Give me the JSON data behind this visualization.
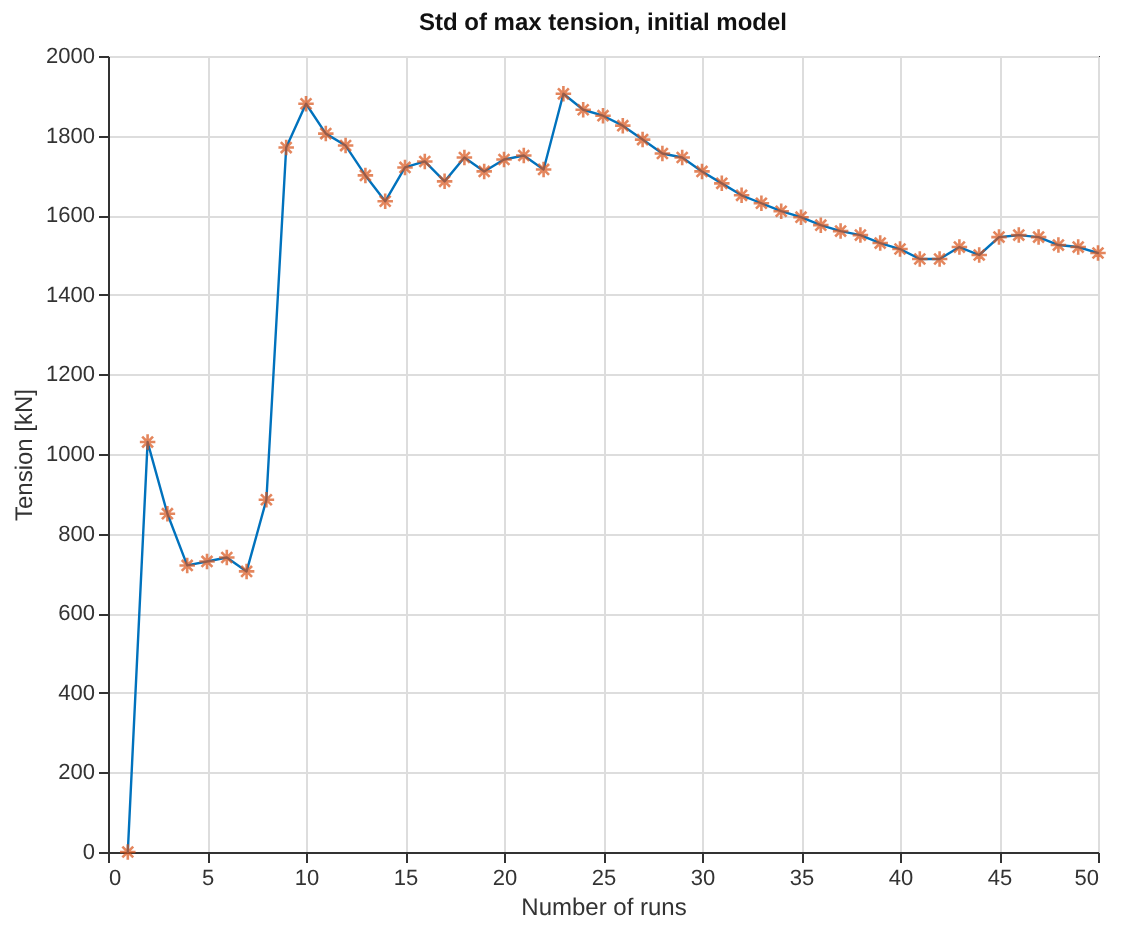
{
  "chart_data": {
    "type": "line",
    "title": "Std of max tension, initial model",
    "xlabel": "Number of runs",
    "ylabel": "Tension [kN]",
    "x": [
      1,
      2,
      3,
      4,
      5,
      6,
      7,
      8,
      9,
      10,
      11,
      12,
      13,
      14,
      15,
      16,
      17,
      18,
      19,
      20,
      21,
      22,
      23,
      24,
      25,
      26,
      27,
      28,
      29,
      30,
      31,
      32,
      33,
      34,
      35,
      36,
      37,
      38,
      39,
      40,
      41,
      42,
      43,
      44,
      45,
      46,
      47,
      48,
      49,
      50
    ],
    "series": [
      {
        "color": "#0072bd",
        "marker": "none",
        "values": [
          0,
          1030,
          850,
          720,
          730,
          740,
          705,
          885,
          1770,
          1880,
          1805,
          1775,
          1700,
          1635,
          1720,
          1735,
          1685,
          1745,
          1710,
          1740,
          1750,
          1715,
          1905,
          1865,
          1850,
          1825,
          1790,
          1755,
          1745,
          1710,
          1680,
          1650,
          1630,
          1610,
          1595,
          1575,
          1560,
          1550,
          1530,
          1515,
          1490,
          1490,
          1520,
          1500,
          1545,
          1550,
          1545,
          1525,
          1520,
          1505
        ]
      },
      {
        "type": "scatter",
        "color": "#d95319",
        "marker": "cross",
        "values": [
          0,
          1030,
          850,
          720,
          730,
          740,
          705,
          885,
          1770,
          1880,
          1805,
          1775,
          1700,
          1635,
          1720,
          1735,
          1685,
          1745,
          1710,
          1740,
          1750,
          1715,
          1905,
          1865,
          1850,
          1825,
          1790,
          1755,
          1745,
          1710,
          1680,
          1650,
          1630,
          1610,
          1595,
          1575,
          1560,
          1550,
          1530,
          1515,
          1490,
          1490,
          1520,
          1500,
          1545,
          1550,
          1545,
          1525,
          1520,
          1505
        ]
      }
    ],
    "xlim": [
      0,
      50
    ],
    "xticks": [
      0,
      5,
      10,
      15,
      20,
      25,
      30,
      35,
      40,
      45,
      50
    ],
    "ylim": [
      0,
      2000
    ],
    "yticks": [
      0,
      200,
      400,
      600,
      800,
      1000,
      1200,
      1400,
      1600,
      1800,
      2000
    ],
    "grid": true
  }
}
